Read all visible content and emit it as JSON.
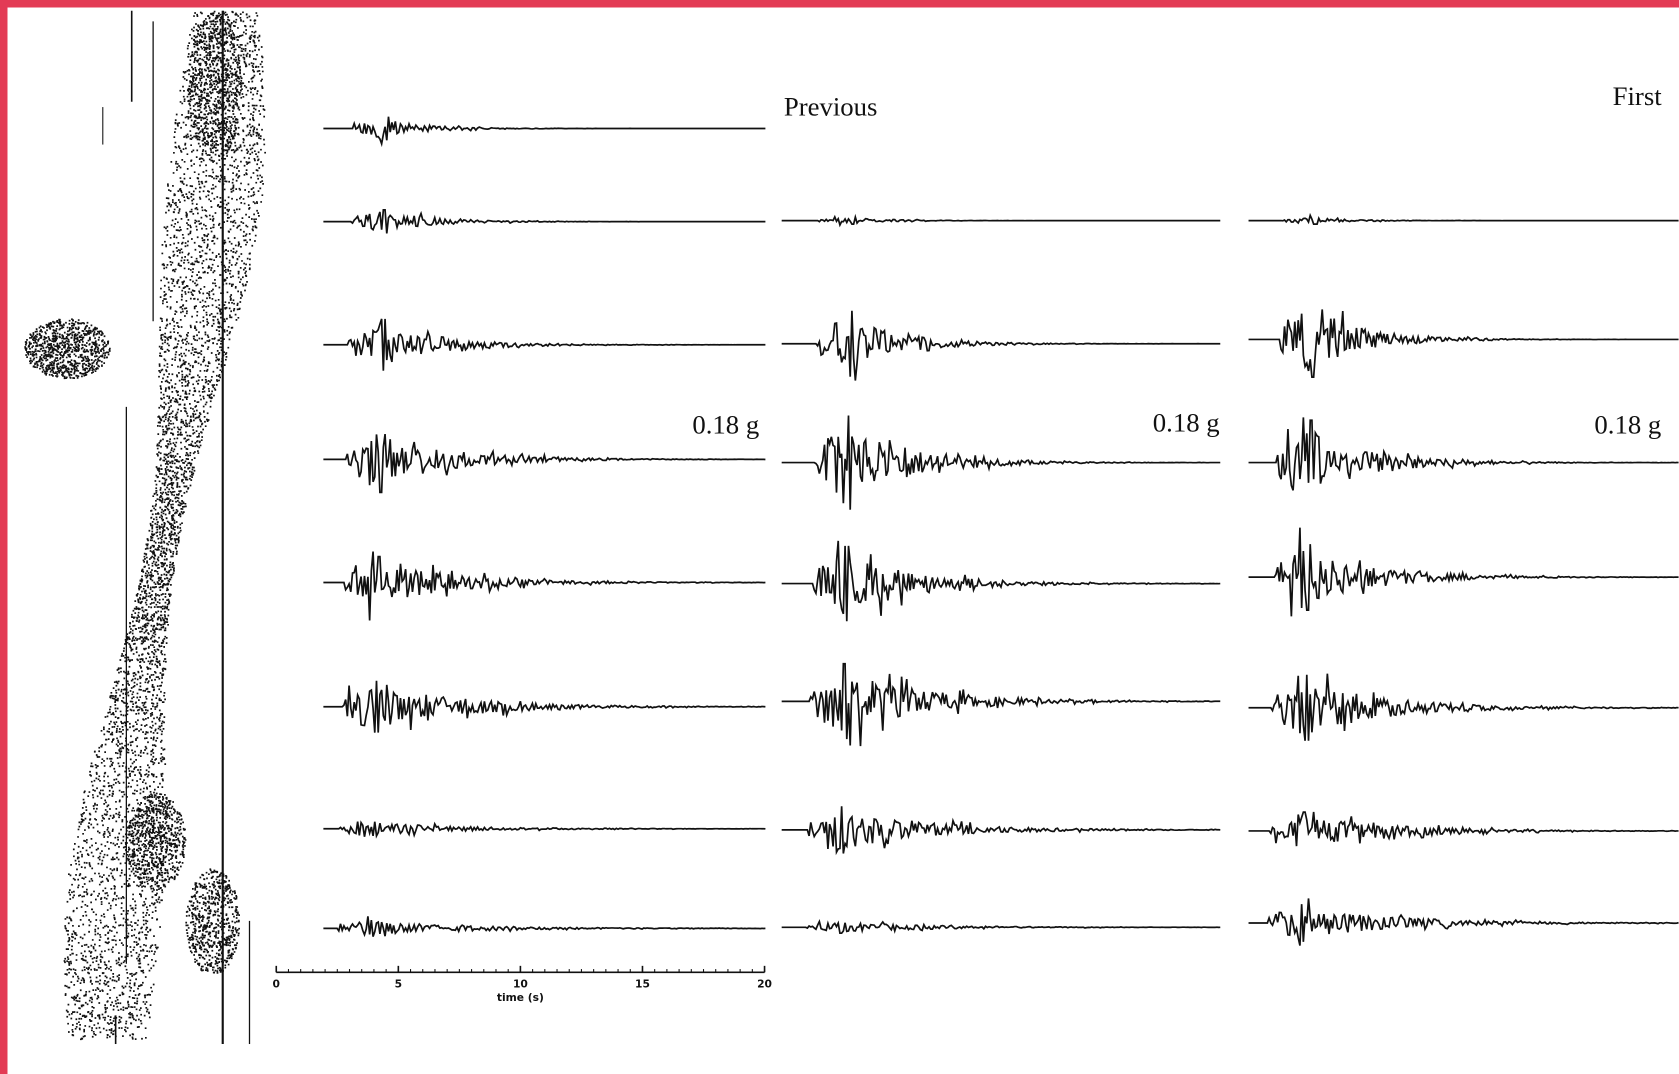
{
  "labels": {
    "previous": "Previous",
    "first": "First",
    "scale_1": "0.18 g",
    "scale_2": "0.18 g",
    "scale_3": "0.18 g"
  },
  "time_axis": {
    "label": "time (s)",
    "lim": [
      0,
      20
    ],
    "ticks": [
      0,
      5,
      10,
      15,
      20
    ]
  }
}
